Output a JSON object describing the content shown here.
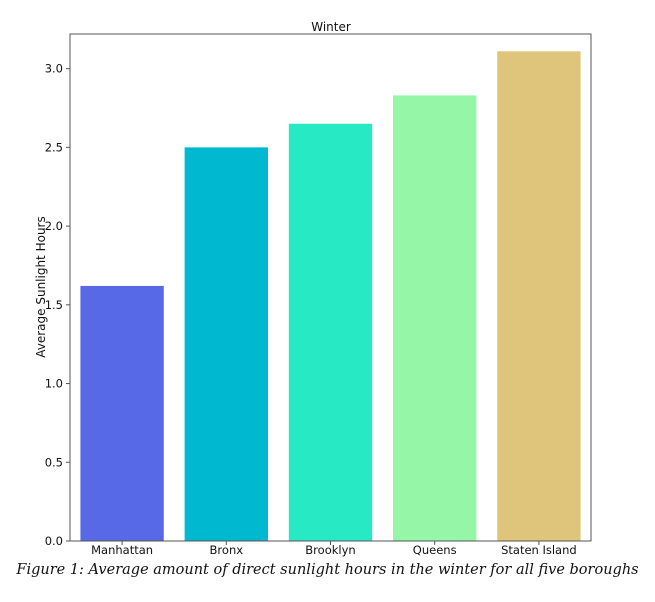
{
  "caption": "Figure 1: Average amount of direct sunlight hours in the winter for all five boroughs",
  "chart_data": {
    "type": "bar",
    "title": "Winter",
    "xlabel": "",
    "ylabel": "Average Sunlight Hours",
    "categories": [
      "Manhattan",
      "Bronx",
      "Brooklyn",
      "Queens",
      "Staten Island"
    ],
    "values": [
      1.62,
      2.5,
      2.65,
      2.83,
      3.11
    ],
    "colors": [
      "#5769E6",
      "#00B8CF",
      "#27EAC4",
      "#96F6A7",
      "#DFC47C"
    ],
    "ylim": [
      0,
      3.22
    ],
    "yticks": [
      "0.0",
      "0.5",
      "1.0",
      "1.5",
      "2.0",
      "2.5",
      "3.0"
    ],
    "grid": false,
    "legend": "none"
  }
}
